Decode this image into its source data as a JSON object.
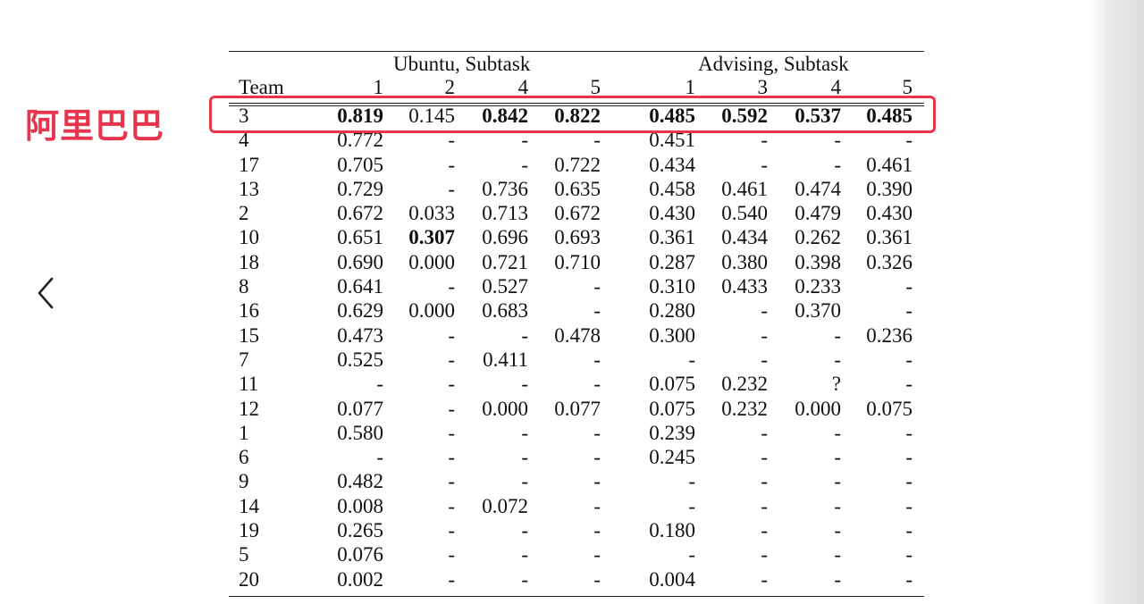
{
  "annotation": {
    "label": "阿里巴巴",
    "color": "#e8344c"
  },
  "nav": {
    "back_icon": "chevron-left-icon"
  },
  "table": {
    "group_headers": [
      "Ubuntu, Subtask",
      "Advising, Subtask"
    ],
    "team_header": "Team",
    "column_headers": [
      "1",
      "2",
      "4",
      "5",
      "1",
      "3",
      "4",
      "5"
    ],
    "rows": [
      {
        "team": "3",
        "cells": [
          "0.819",
          "0.145",
          "0.842",
          "0.822",
          "0.485",
          "0.592",
          "0.537",
          "0.485"
        ],
        "bold": [
          true,
          false,
          true,
          true,
          true,
          true,
          true,
          true
        ]
      },
      {
        "team": "4",
        "cells": [
          "0.772",
          "-",
          "-",
          "-",
          "0.451",
          "-",
          "-",
          "-"
        ],
        "bold": []
      },
      {
        "team": "17",
        "cells": [
          "0.705",
          "-",
          "-",
          "0.722",
          "0.434",
          "-",
          "-",
          "0.461"
        ],
        "bold": []
      },
      {
        "team": "13",
        "cells": [
          "0.729",
          "-",
          "0.736",
          "0.635",
          "0.458",
          "0.461",
          "0.474",
          "0.390"
        ],
        "bold": []
      },
      {
        "team": "2",
        "cells": [
          "0.672",
          "0.033",
          "0.713",
          "0.672",
          "0.430",
          "0.540",
          "0.479",
          "0.430"
        ],
        "bold": []
      },
      {
        "team": "10",
        "cells": [
          "0.651",
          "0.307",
          "0.696",
          "0.693",
          "0.361",
          "0.434",
          "0.262",
          "0.361"
        ],
        "bold": [
          false,
          true
        ]
      },
      {
        "team": "18",
        "cells": [
          "0.690",
          "0.000",
          "0.721",
          "0.710",
          "0.287",
          "0.380",
          "0.398",
          "0.326"
        ],
        "bold": []
      },
      {
        "team": "8",
        "cells": [
          "0.641",
          "-",
          "0.527",
          "-",
          "0.310",
          "0.433",
          "0.233",
          "-"
        ],
        "bold": []
      },
      {
        "team": "16",
        "cells": [
          "0.629",
          "0.000",
          "0.683",
          "-",
          "0.280",
          "-",
          "0.370",
          "-"
        ],
        "bold": []
      },
      {
        "team": "15",
        "cells": [
          "0.473",
          "-",
          "-",
          "0.478",
          "0.300",
          "-",
          "-",
          "0.236"
        ],
        "bold": []
      },
      {
        "team": "7",
        "cells": [
          "0.525",
          "-",
          "0.411",
          "-",
          "-",
          "-",
          "-",
          "-"
        ],
        "bold": []
      },
      {
        "team": "11",
        "cells": [
          "-",
          "-",
          "-",
          "-",
          "0.075",
          "0.232",
          "?",
          "-"
        ],
        "bold": []
      },
      {
        "team": "12",
        "cells": [
          "0.077",
          "-",
          "0.000",
          "0.077",
          "0.075",
          "0.232",
          "0.000",
          "0.075"
        ],
        "bold": []
      },
      {
        "team": "1",
        "cells": [
          "0.580",
          "-",
          "-",
          "-",
          "0.239",
          "-",
          "-",
          "-"
        ],
        "bold": []
      },
      {
        "team": "6",
        "cells": [
          "-",
          "-",
          "-",
          "-",
          "0.245",
          "-",
          "-",
          "-"
        ],
        "bold": []
      },
      {
        "team": "9",
        "cells": [
          "0.482",
          "-",
          "-",
          "-",
          "-",
          "-",
          "-",
          "-"
        ],
        "bold": []
      },
      {
        "team": "14",
        "cells": [
          "0.008",
          "-",
          "0.072",
          "-",
          "-",
          "-",
          "-",
          "-"
        ],
        "bold": []
      },
      {
        "team": "19",
        "cells": [
          "0.265",
          "-",
          "-",
          "-",
          "0.180",
          "-",
          "-",
          "-"
        ],
        "bold": []
      },
      {
        "team": "5",
        "cells": [
          "0.076",
          "-",
          "-",
          "-",
          "-",
          "-",
          "-",
          "-"
        ],
        "bold": []
      },
      {
        "team": "20",
        "cells": [
          "0.002",
          "-",
          "-",
          "-",
          "0.004",
          "-",
          "-",
          "-"
        ],
        "bold": []
      }
    ]
  }
}
